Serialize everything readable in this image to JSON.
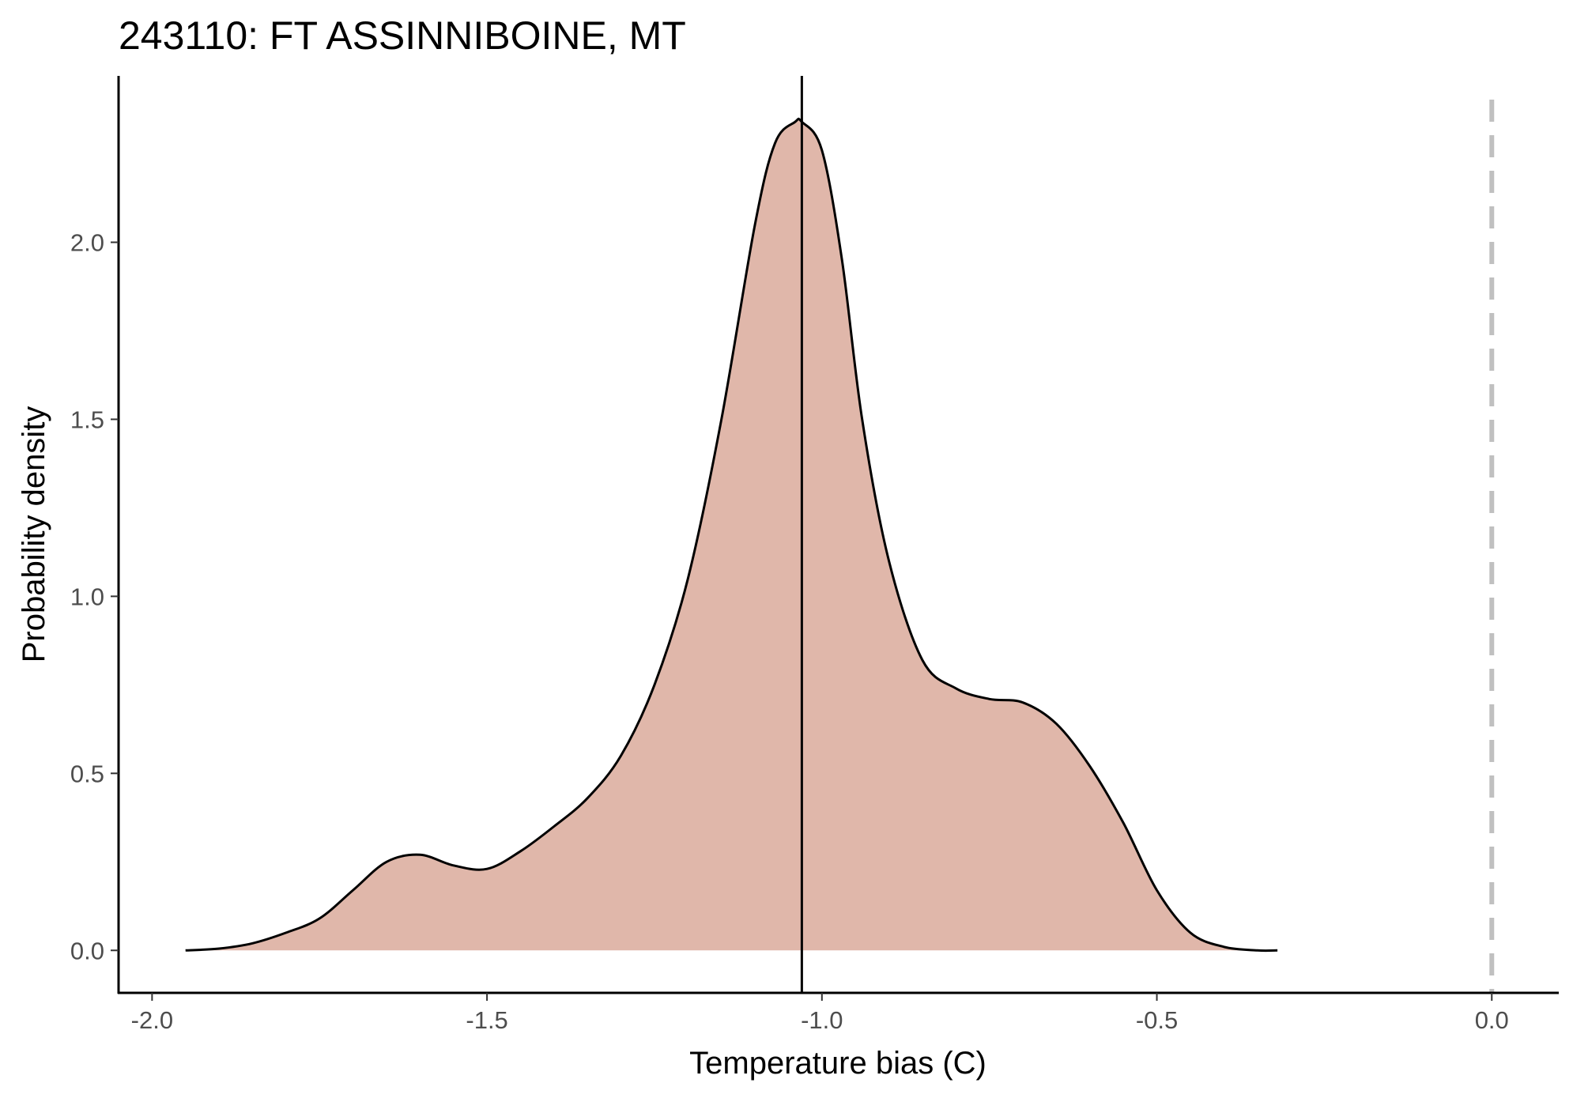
{
  "chart_data": {
    "type": "area",
    "title": "243110: FT ASSINNIBOINE, MT",
    "xlabel": "Temperature bias (C)",
    "ylabel": "Probability density",
    "xlim": [
      -2.05,
      0.1
    ],
    "ylim": [
      -0.12,
      2.47
    ],
    "x_ticks": [
      -2.0,
      -1.5,
      -1.0,
      -0.5,
      0.0
    ],
    "x_tick_labels": [
      "-2.0",
      "-1.5",
      "-1.0",
      "-0.5",
      "0.0"
    ],
    "y_ticks": [
      0.0,
      0.5,
      1.0,
      1.5,
      2.0
    ],
    "y_tick_labels": [
      "0.0",
      "0.5",
      "1.0",
      "1.5",
      "2.0"
    ],
    "grid": false,
    "legend": "none",
    "fill_color": "#e0b7aa",
    "line_color": "#000000",
    "reference_lines": [
      {
        "x": -1.03,
        "style": "solid",
        "color": "#000000"
      },
      {
        "x": 0.0,
        "style": "dashed",
        "color": "#c0c0c0"
      }
    ],
    "series": [
      {
        "x": [
          -1.95,
          -1.9,
          -1.85,
          -1.8,
          -1.75,
          -1.7,
          -1.65,
          -1.6,
          -1.55,
          -1.5,
          -1.45,
          -1.4,
          -1.35,
          -1.3,
          -1.25,
          -1.2,
          -1.15,
          -1.1,
          -1.07,
          -1.04,
          -1.03,
          -1.0,
          -0.97,
          -0.94,
          -0.9,
          -0.85,
          -0.8,
          -0.75,
          -0.7,
          -0.65,
          -0.6,
          -0.55,
          -0.5,
          -0.45,
          -0.4,
          -0.35,
          -0.32
        ],
        "y": [
          0.0,
          0.005,
          0.02,
          0.05,
          0.09,
          0.17,
          0.25,
          0.27,
          0.24,
          0.23,
          0.28,
          0.35,
          0.43,
          0.55,
          0.75,
          1.05,
          1.5,
          2.05,
          2.28,
          2.34,
          2.34,
          2.26,
          1.95,
          1.5,
          1.1,
          0.82,
          0.74,
          0.71,
          0.7,
          0.64,
          0.52,
          0.36,
          0.17,
          0.05,
          0.01,
          0.0,
          0.0
        ]
      }
    ]
  }
}
